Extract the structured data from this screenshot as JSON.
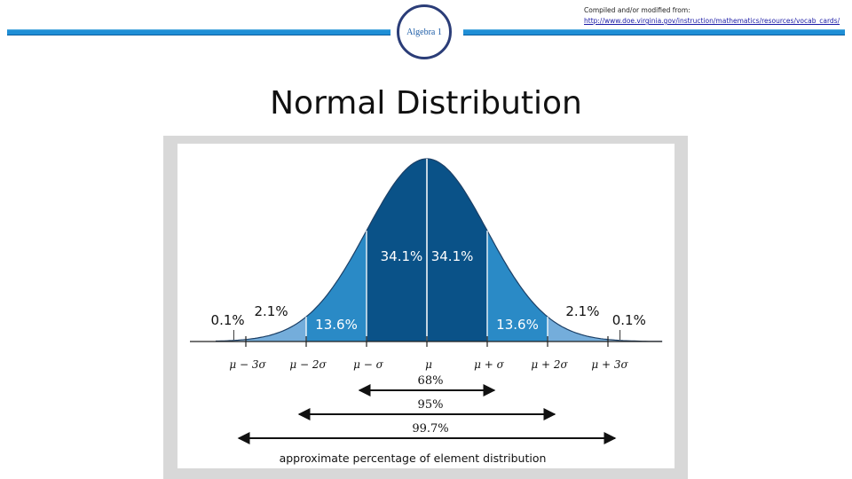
{
  "header": {
    "badge_label": "Algebra 1",
    "credit_line1": "Compiled and/or modified from:",
    "credit_url": "http://www.doe.virginia.gov/instruction/mathematics/resources/vocab_cards/"
  },
  "slide": {
    "title": "Normal Distribution"
  },
  "colors": {
    "accent_bar": "#1f8fd6",
    "badge_border": "#2b3d78",
    "band_1sd": "#0a5288",
    "band_2sd": "#2a8ac6",
    "band_3sd": "#74addb",
    "band_tail": "#b3d2ec"
  },
  "chart_data": {
    "type": "area",
    "title": "",
    "xlabel": "",
    "ylabel": "",
    "tick_labels": [
      "μ − 3σ",
      "μ − 2σ",
      "μ − σ",
      "μ",
      "μ + σ",
      "μ + 2σ",
      "μ + 3σ"
    ],
    "x_ticks": [
      -3,
      -2,
      -1,
      0,
      1,
      2,
      3
    ],
    "xlim": [
      -3.5,
      3.9
    ],
    "bands": [
      {
        "from": -3,
        "to": -2,
        "value": "2.1%",
        "color": "#74addb"
      },
      {
        "from": -2,
        "to": -1,
        "value": "13.6%",
        "color": "#2a8ac6"
      },
      {
        "from": -1,
        "to": 0,
        "value": "34.1%",
        "color": "#0a5288"
      },
      {
        "from": 0,
        "to": 1,
        "value": "34.1%",
        "color": "#0a5288"
      },
      {
        "from": 1,
        "to": 2,
        "value": "13.6%",
        "color": "#2a8ac6"
      },
      {
        "from": 2,
        "to": 3,
        "value": "2.1%",
        "color": "#74addb"
      }
    ],
    "tails": [
      {
        "side": "left",
        "value": "0.1%"
      },
      {
        "side": "right",
        "value": "0.1%"
      }
    ],
    "ranges": [
      {
        "from": -1,
        "to": 1,
        "label": "68%"
      },
      {
        "from": -2,
        "to": 2,
        "label": "95%"
      },
      {
        "from": -3,
        "to": 3,
        "label": "99.7%"
      }
    ],
    "caption": "approximate percentage of element distribution"
  }
}
